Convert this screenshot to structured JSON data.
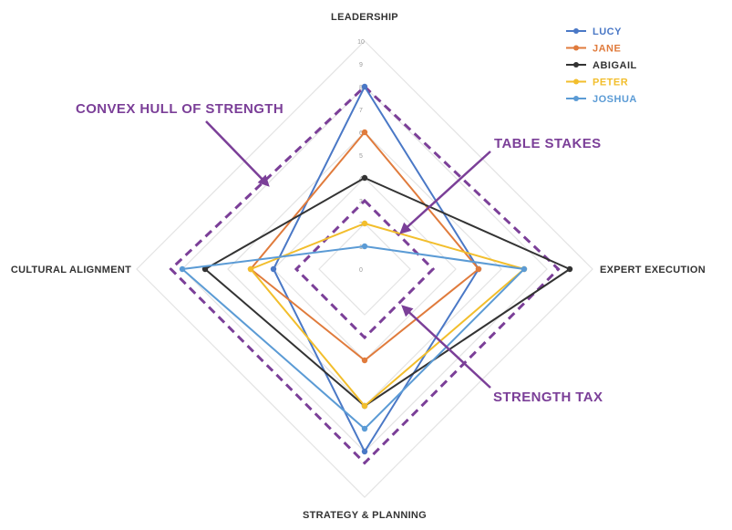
{
  "chart_data": {
    "type": "radar",
    "axes": [
      "LEADERSHIP",
      "EXPERT EXECUTION",
      "STRATEGY & PLANNING",
      "CULTURAL ALIGNMENT"
    ],
    "scale": {
      "min": 0,
      "max": 10,
      "ticks": [
        0,
        1,
        2,
        3,
        4,
        5,
        6,
        7,
        8,
        9,
        10
      ]
    },
    "series": [
      {
        "name": "LUCY",
        "color": "#4a78c6",
        "values": [
          8,
          5,
          8,
          4
        ]
      },
      {
        "name": "JANE",
        "color": "#e07b3c",
        "values": [
          6,
          5,
          4,
          5
        ]
      },
      {
        "name": "ABIGAIL",
        "color": "#333333",
        "values": [
          4,
          9,
          6,
          7
        ]
      },
      {
        "name": "PETER",
        "color": "#f2be2c",
        "values": [
          2,
          7,
          6,
          5
        ]
      },
      {
        "name": "JOSHUA",
        "color": "#5b9bd5",
        "values": [
          1,
          7,
          7,
          8
        ]
      }
    ],
    "reference_shapes": [
      {
        "label": "CONVEX HULL OF STRENGTH",
        "values": [
          8,
          8.5,
          8.5,
          8.5
        ],
        "color": "#7b3f98"
      },
      {
        "label": "TABLE STAKES",
        "values": [
          3,
          3,
          3,
          3
        ],
        "color": "#7b3f98"
      }
    ],
    "annotations": [
      "CONVEX HULL OF STRENGTH",
      "TABLE STAKES",
      "STRENGTH TAX"
    ],
    "legend_position": "top-right",
    "grid": true
  }
}
